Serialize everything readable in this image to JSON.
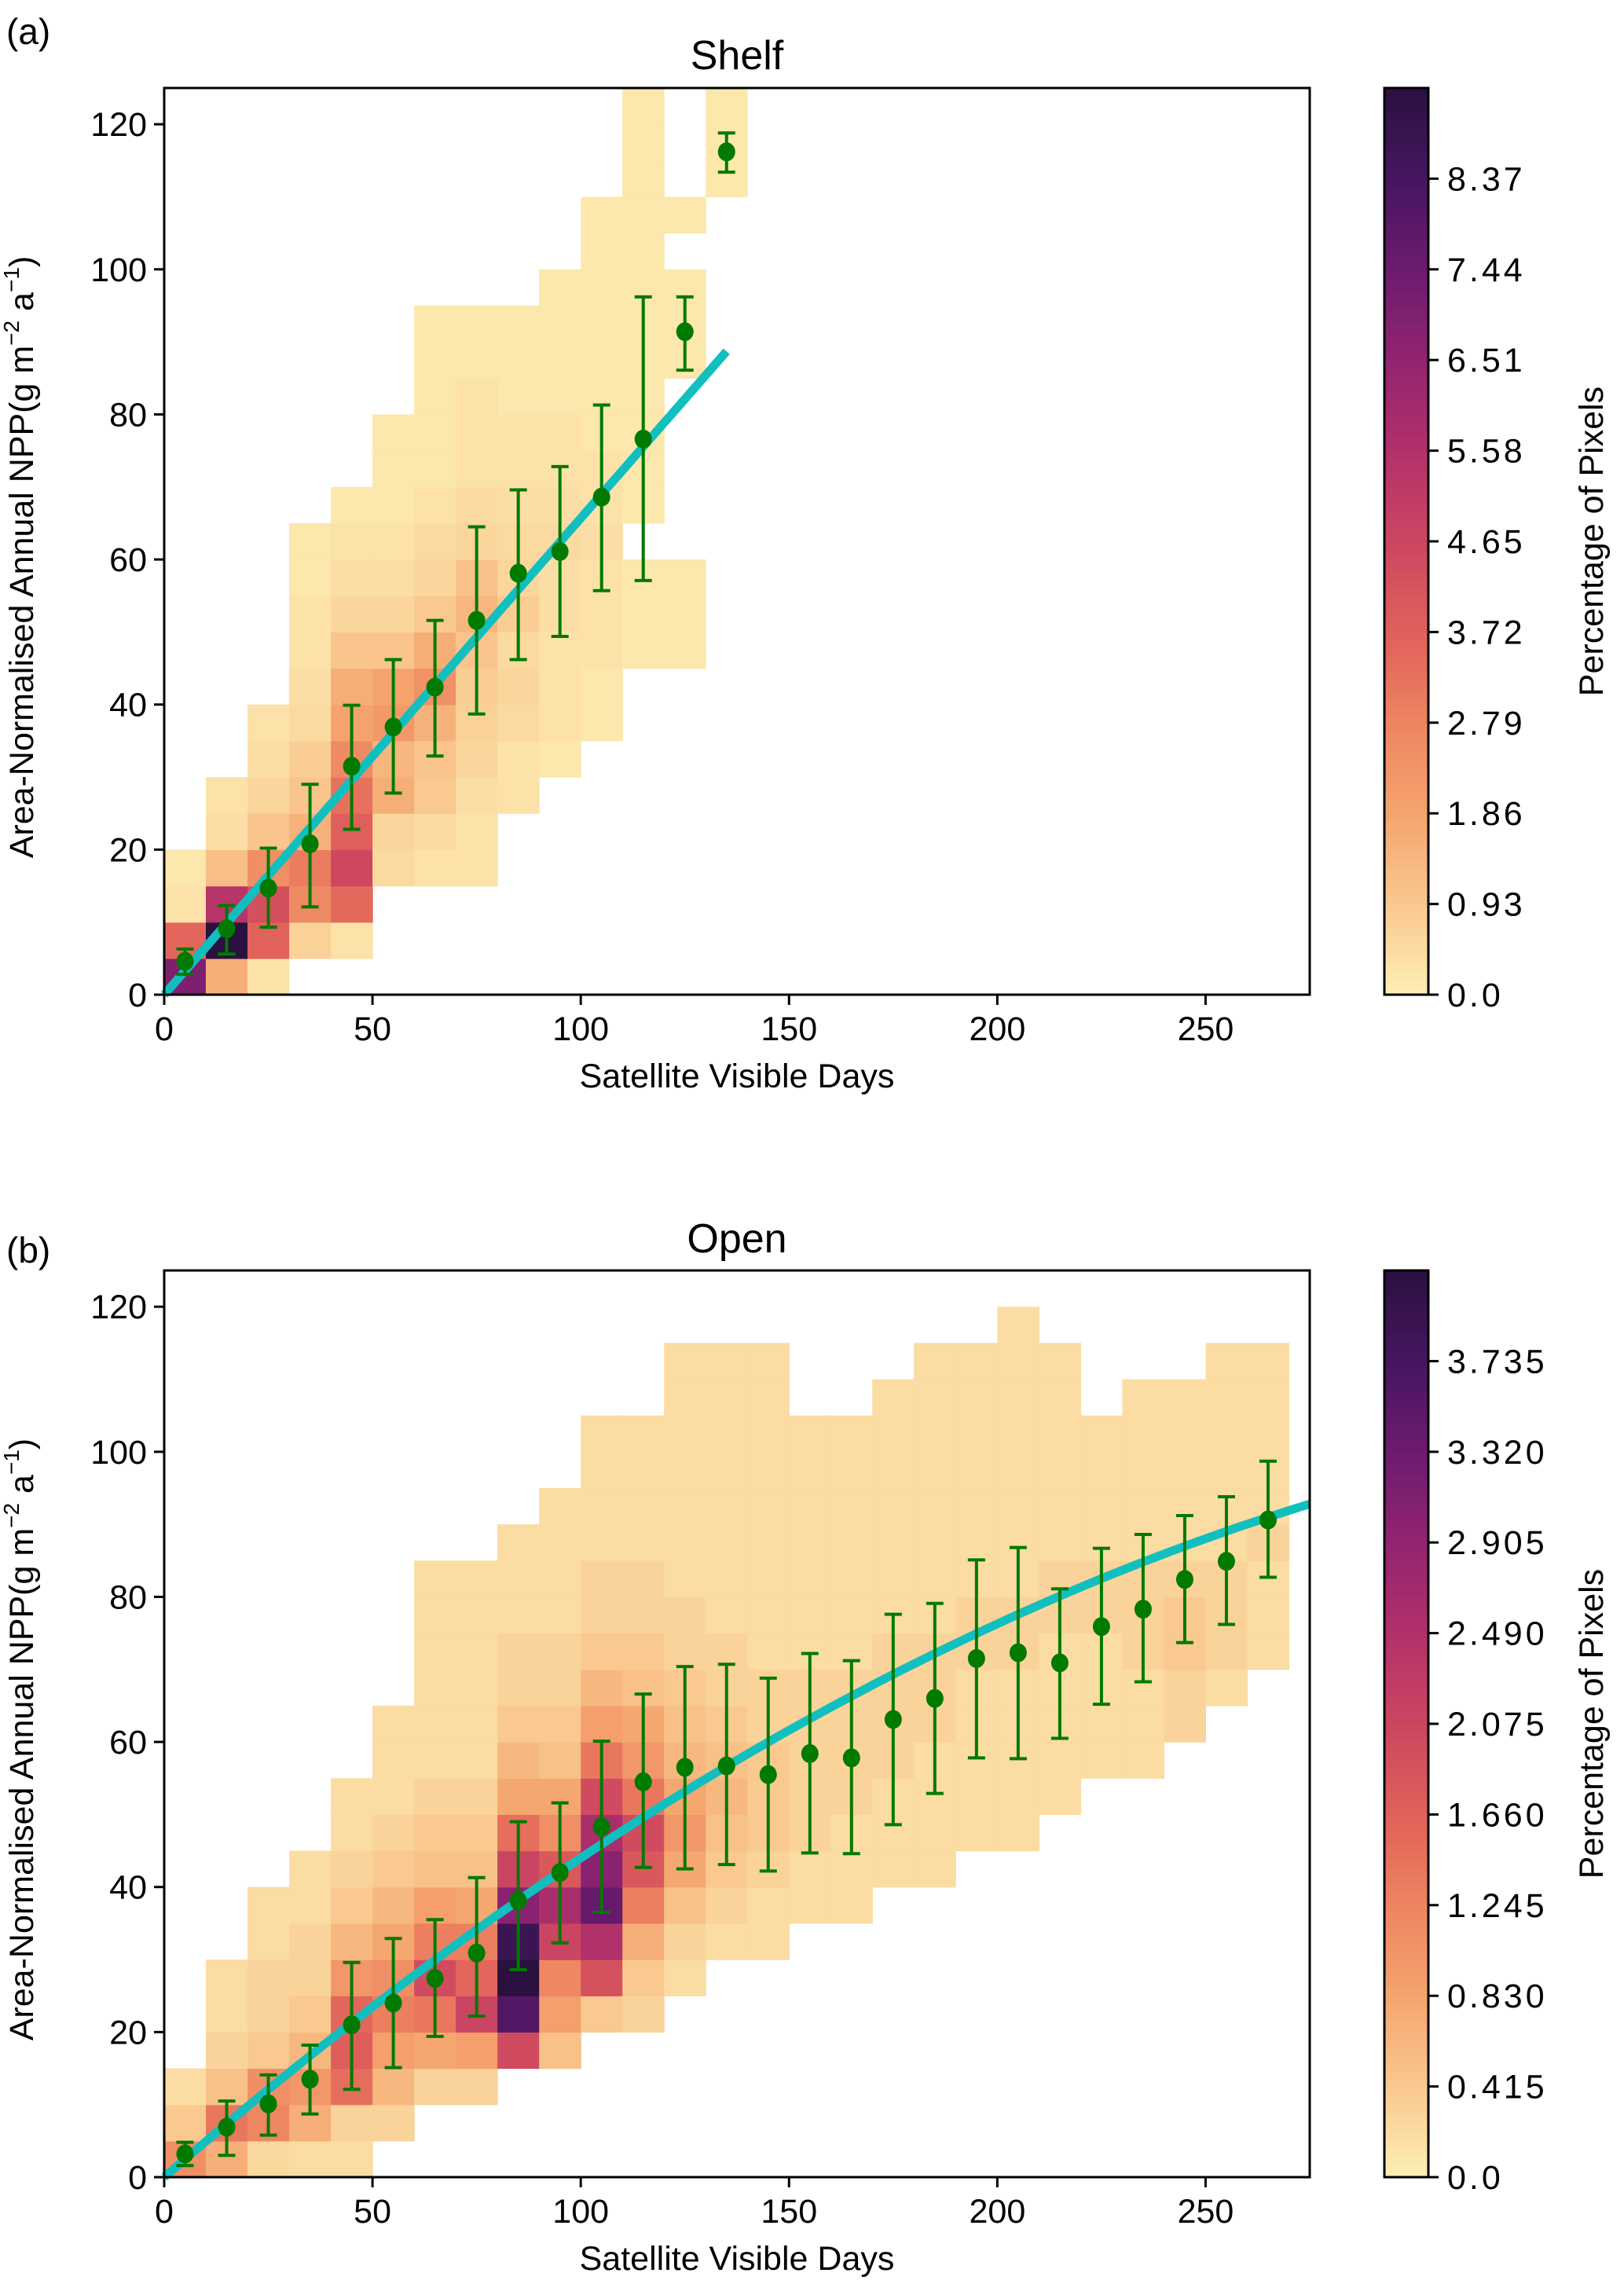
{
  "figure": {
    "panels": [
      "a",
      "b"
    ]
  },
  "colormap": {
    "name": "magma_r",
    "stops": [
      "#fdefb5",
      "#f9c88f",
      "#f5a46e",
      "#ee8461",
      "#e0615a",
      "#cc4661",
      "#b2316a",
      "#912471",
      "#6d1b6f",
      "#461660",
      "#2a1140"
    ]
  },
  "style": {
    "point_color": "#007a00",
    "fit_color": "#12bfbf",
    "axis_color": "#000000"
  },
  "chart_data": [
    {
      "id": "a",
      "type": "heatmap",
      "panel_label": "(a)",
      "title": "Shelf",
      "xlabel": "Satellite Visible Days",
      "ylabel": "Area-Normalised Annual NPP(g m-2 a-1)",
      "ylabel_parts": {
        "main": "Area-Normalised Annual NPP(g m",
        "sup1": "−2",
        "mid": " a",
        "sup2": "−1",
        "end": ")"
      },
      "xlim": [
        0,
        275
      ],
      "ylim": [
        0,
        125
      ],
      "xticks": [
        0,
        50,
        100,
        150,
        200,
        250
      ],
      "yticks": [
        0,
        20,
        40,
        60,
        80,
        100,
        120
      ],
      "bin_width_x": 10,
      "bin_height_y": 5,
      "colorbar": {
        "label": "Percentage of Pixels",
        "range": [
          0,
          9.3
        ],
        "ticks": [
          "0.0",
          "0.93",
          "1.86",
          "2.79",
          "3.72",
          "4.65",
          "5.58",
          "6.51",
          "7.44",
          "8.37"
        ],
        "tick_values": [
          0,
          0.93,
          1.86,
          2.79,
          3.72,
          4.65,
          5.58,
          6.51,
          7.44,
          8.37
        ]
      },
      "heatmap_columns": [
        {
          "x": 0,
          "y0": 0,
          "values": [
            7.0,
            3.6,
            0.3,
            0.2
          ]
        },
        {
          "x": 10,
          "y0": 0,
          "values": [
            1.6,
            9.3,
            5.4,
            1.2,
            0.4,
            0.3
          ]
        },
        {
          "x": 20,
          "y0": 0,
          "values": [
            0.3,
            3.7,
            4.3,
            2.5,
            1.0,
            0.6,
            0.4,
            0.3
          ]
        },
        {
          "x": 30,
          "y0": 5,
          "values": [
            0.7,
            2.6,
            3.0,
            1.5,
            1.0,
            0.8,
            0.5,
            0.4,
            0.3,
            0.3,
            0.2,
            0.2
          ]
        },
        {
          "x": 40,
          "y0": 5,
          "values": [
            0.3,
            3.5,
            4.6,
            3.8,
            3.3,
            2.6,
            1.9,
            1.6,
            1.0,
            0.6,
            0.4,
            0.3,
            0.2
          ]
        },
        {
          "x": 50,
          "y0": 15,
          "values": [
            0.5,
            0.6,
            1.6,
            1.4,
            2.2,
            1.9,
            1.0,
            0.6,
            0.4,
            0.3,
            0.2,
            0.2,
            0.2
          ]
        },
        {
          "x": 60,
          "y0": 15,
          "values": [
            0.3,
            0.5,
            0.9,
            1.0,
            1.5,
            2.4,
            1.6,
            0.9,
            0.6,
            0.5,
            0.3,
            0.2,
            0.2,
            0.2,
            0.2,
            0.2
          ]
        },
        {
          "x": 70,
          "y0": 15,
          "values": [
            0.3,
            0.3,
            0.4,
            0.6,
            0.7,
            0.8,
            1.0,
            1.4,
            1.1,
            0.6,
            0.5,
            0.3,
            0.3,
            0.3,
            0.2,
            0.2
          ]
        },
        {
          "x": 80,
          "y0": 25,
          "values": [
            0.3,
            0.3,
            0.5,
            0.6,
            0.5,
            0.8,
            0.6,
            0.5,
            0.4,
            0.3,
            0.3,
            0.2,
            0.2,
            0.2
          ]
        },
        {
          "x": 90,
          "y0": 30,
          "values": [
            0.2,
            0.3,
            0.3,
            0.3,
            0.4,
            0.4,
            0.5,
            0.4,
            0.3,
            0.3,
            0.2,
            0.2,
            0.2,
            0.2
          ]
        },
        {
          "x": 100,
          "y0": 35,
          "values": [
            0.2,
            0.2,
            0.3,
            0.3,
            0.3,
            0.4,
            0.3,
            0.3,
            0.2,
            0.2,
            0.2,
            0.2,
            0.2,
            0.2,
            0.2
          ]
        },
        {
          "x": 110,
          "y0": 45,
          "values": [
            0.2,
            0.2,
            0.2,
            null,
            0.2,
            0.2,
            0.2,
            0.2,
            0.2,
            0.2,
            0.2,
            0.2,
            0.2,
            0.2,
            0.2,
            0.2
          ]
        },
        {
          "x": 120,
          "y0": 45,
          "values": [
            0.2,
            0.2,
            0.2,
            null,
            null,
            null,
            null,
            null,
            0.2,
            0.2,
            0.2,
            null,
            0.2
          ]
        },
        {
          "x": 130,
          "y0": 110,
          "values": [
            0.2,
            0.2,
            0.2
          ]
        }
      ],
      "mean_points": {
        "x": [
          5,
          15,
          25,
          35,
          45,
          55,
          65,
          75,
          85,
          95,
          105,
          115,
          125,
          135
        ],
        "y": [
          4.6,
          9.1,
          14.7,
          20.8,
          31.5,
          36.9,
          42.4,
          51.6,
          58.1,
          61.1,
          68.6,
          76.6,
          91.4,
          116.2
        ],
        "upper": [
          6.3,
          12.3,
          20.2,
          29.0,
          39.9,
          46.2,
          51.6,
          64.5,
          69.6,
          72.8,
          81.3,
          96.2,
          96.2,
          118.8
        ],
        "lower": [
          2.8,
          5.6,
          9.3,
          12.1,
          22.8,
          27.8,
          32.9,
          38.7,
          46.2,
          49.4,
          55.7,
          57.1,
          86.1,
          113.4
        ]
      },
      "fit": {
        "form": "y = a*x + b*x^2",
        "a": 0.657,
        "b": 0.0,
        "x_range": [
          0,
          135
        ]
      }
    },
    {
      "id": "b",
      "type": "heatmap",
      "panel_label": "(b)",
      "title": "Open",
      "xlabel": "Satellite Visible Days",
      "ylabel": "Area-Normalised Annual NPP(g m-2 a-1)",
      "ylabel_parts": {
        "main": "Area-Normalised Annual NPP(g m",
        "sup1": "−2",
        "mid": " a",
        "sup2": "−1",
        "end": ")"
      },
      "xlim": [
        0,
        275
      ],
      "ylim": [
        0,
        125
      ],
      "xticks": [
        0,
        50,
        100,
        150,
        200,
        250
      ],
      "yticks": [
        0,
        20,
        40,
        60,
        80,
        100,
        120
      ],
      "bin_width_x": 10,
      "bin_height_y": 5,
      "colorbar": {
        "label": "Percentage of Pixels",
        "range": [
          0,
          4.15
        ],
        "ticks": [
          "0.0",
          "0.415",
          "0.830",
          "1.245",
          "1.660",
          "2.075",
          "2.490",
          "2.905",
          "3.320",
          "3.735"
        ],
        "tick_values": [
          0,
          0.415,
          0.83,
          1.245,
          1.66,
          2.075,
          2.49,
          2.905,
          3.32,
          3.735
        ]
      },
      "heatmap_columns": [
        {
          "x": 0,
          "y0": 0,
          "values": [
            1.1,
            0.4,
            0.2
          ]
        },
        {
          "x": 10,
          "y0": 0,
          "values": [
            0.7,
            1.4,
            0.5,
            0.3,
            0.2,
            0.2
          ]
        },
        {
          "x": 20,
          "y0": 0,
          "values": [
            0.25,
            1.2,
            1.1,
            0.4,
            0.3,
            0.3,
            0.2,
            0.2
          ]
        },
        {
          "x": 30,
          "y0": 0,
          "values": [
            0.2,
            0.7,
            1.0,
            0.6,
            0.4,
            0.3,
            0.3,
            0.2,
            0.2
          ]
        },
        {
          "x": 40,
          "y0": 0,
          "values": [
            0.2,
            0.3,
            1.5,
            1.7,
            1.6,
            1.0,
            0.6,
            0.4,
            0.3,
            0.2,
            0.2
          ]
        },
        {
          "x": 50,
          "y0": 5,
          "values": [
            0.3,
            0.6,
            0.9,
            1.3,
            1.1,
            0.8,
            0.6,
            0.4,
            0.3,
            0.2,
            0.2,
            0.2
          ]
        },
        {
          "x": 60,
          "y0": 10,
          "values": [
            0.3,
            0.8,
            1.4,
            2.0,
            1.3,
            0.9,
            0.5,
            0.4,
            0.3,
            0.2,
            0.2,
            0.2,
            0.2,
            0.2,
            0.2
          ]
        },
        {
          "x": 70,
          "y0": 10,
          "values": [
            0.3,
            0.9,
            2.1,
            1.6,
            1.3,
            0.8,
            0.5,
            0.4,
            0.3,
            0.2,
            0.2,
            0.2,
            0.2,
            0.2,
            0.2
          ]
        },
        {
          "x": 80,
          "y0": 15,
          "values": [
            2.0,
            3.6,
            4.15,
            3.9,
            3.0,
            2.1,
            1.5,
            0.8,
            0.6,
            0.4,
            0.3,
            0.3,
            0.2,
            0.2,
            0.2
          ]
        },
        {
          "x": 90,
          "y0": 15,
          "values": [
            0.5,
            0.9,
            1.2,
            2.1,
            2.6,
            1.8,
            1.1,
            0.8,
            0.5,
            0.4,
            0.3,
            0.3,
            0.2,
            0.2,
            0.2,
            0.2
          ]
        },
        {
          "x": 100,
          "y0": 20,
          "values": [
            0.4,
            1.9,
            2.5,
            3.4,
            3.0,
            2.6,
            2.0,
            1.4,
            0.9,
            0.6,
            0.4,
            0.3,
            0.3,
            0.2,
            0.2,
            0.2,
            0.2
          ]
        },
        {
          "x": 110,
          "y0": 20,
          "values": [
            0.3,
            0.4,
            0.7,
            1.3,
            1.8,
            2.0,
            1.4,
            1.0,
            0.8,
            0.5,
            0.4,
            0.3,
            0.3,
            0.2,
            0.2,
            0.2,
            0.2
          ]
        },
        {
          "x": 120,
          "y0": 25,
          "values": [
            0.2,
            0.3,
            0.5,
            0.8,
            1.0,
            0.8,
            0.6,
            0.5,
            0.4,
            0.3,
            0.3,
            0.2,
            0.2,
            0.2,
            0.2,
            0.2,
            0.2,
            0.2
          ]
        },
        {
          "x": 130,
          "y0": 30,
          "values": [
            0.2,
            0.3,
            0.4,
            0.5,
            0.6,
            0.5,
            0.4,
            0.3,
            0.3,
            0.2,
            0.2,
            0.2,
            0.2,
            0.2,
            0.2,
            0.2,
            0.2
          ]
        },
        {
          "x": 140,
          "y0": 30,
          "values": [
            0.2,
            0.2,
            0.3,
            0.4,
            0.4,
            0.4,
            0.3,
            0.3,
            0.2,
            0.2,
            0.2,
            0.2,
            0.2,
            0.2,
            0.2,
            0.2,
            0.2
          ]
        },
        {
          "x": 150,
          "y0": 35,
          "values": [
            0.2,
            0.2,
            0.3,
            0.3,
            0.3,
            0.3,
            0.3,
            0.2,
            0.2,
            0.2,
            0.2,
            0.2,
            0.2,
            0.2
          ]
        },
        {
          "x": 160,
          "y0": 35,
          "values": [
            0.2,
            0.2,
            0.2,
            0.3,
            0.3,
            0.3,
            0.3,
            0.2,
            0.2,
            0.2,
            0.2,
            0.2,
            0.2,
            0.2
          ]
        },
        {
          "x": 170,
          "y0": 40,
          "values": [
            0.2,
            0.2,
            0.2,
            0.3,
            0.3,
            0.3,
            0.3,
            0.2,
            0.2,
            0.2,
            0.2,
            0.2,
            0.2,
            0.2
          ]
        },
        {
          "x": 180,
          "y0": 40,
          "values": [
            0.2,
            0.2,
            0.2,
            0.2,
            0.3,
            0.3,
            0.3,
            0.2,
            0.2,
            0.2,
            0.2,
            0.2,
            0.2,
            0.2,
            0.2
          ]
        },
        {
          "x": 190,
          "y0": 45,
          "values": [
            0.2,
            0.2,
            0.2,
            0.2,
            0.2,
            0.3,
            0.3,
            0.2,
            0.2,
            0.2,
            0.2,
            0.2,
            0.2,
            0.2
          ]
        },
        {
          "x": 200,
          "y0": 45,
          "values": [
            0.2,
            0.2,
            0.2,
            0.2,
            0.2,
            0.3,
            0.3,
            0.2,
            0.2,
            0.2,
            0.2,
            0.2,
            0.2,
            0.2,
            0.2
          ]
        },
        {
          "x": 210,
          "y0": 50,
          "values": [
            0.2,
            0.2,
            0.2,
            0.2,
            0.2,
            0.3,
            0.3,
            0.2,
            0.2,
            0.2,
            0.2,
            0.2,
            0.2
          ]
        },
        {
          "x": 220,
          "y0": 55,
          "values": [
            0.2,
            0.2,
            0.2,
            0.2,
            0.3,
            0.3,
            0.2,
            0.2,
            0.2,
            0.2
          ]
        },
        {
          "x": 230,
          "y0": 55,
          "values": [
            0.2,
            0.2,
            0.2,
            0.3,
            0.3,
            0.3,
            0.2,
            0.2,
            0.2,
            0.2,
            0.2
          ]
        },
        {
          "x": 240,
          "y0": 60,
          "values": [
            0.3,
            0.3,
            0.4,
            0.4,
            0.3,
            0.2,
            0.2,
            0.2,
            0.2,
            0.2
          ]
        },
        {
          "x": 250,
          "y0": 65,
          "values": [
            0.2,
            0.3,
            0.3,
            0.3,
            0.2,
            0.2,
            0.2,
            0.2,
            0.2,
            0.2
          ]
        },
        {
          "x": 260,
          "y0": 70,
          "values": [
            0.2,
            0.2,
            0.2,
            0.3,
            0.2,
            0.2,
            0.2,
            0.2,
            0.2
          ]
        }
      ],
      "mean_points": {
        "x": [
          5,
          15,
          25,
          35,
          45,
          55,
          65,
          75,
          85,
          95,
          105,
          115,
          125,
          135,
          145,
          155,
          165,
          175,
          185,
          195,
          205,
          215,
          225,
          235,
          245,
          255,
          265
        ],
        "y": [
          3.2,
          6.9,
          10.1,
          13.5,
          21.0,
          24.0,
          27.4,
          30.9,
          38.1,
          42.0,
          48.3,
          54.5,
          56.5,
          56.7,
          55.5,
          58.4,
          57.8,
          63.1,
          66.0,
          71.5,
          72.3,
          70.9,
          75.9,
          78.3,
          82.4,
          84.9,
          90.6
        ],
        "upper": [
          4.8,
          10.5,
          14.1,
          18.2,
          29.6,
          32.9,
          35.5,
          41.3,
          49.0,
          51.6,
          60.1,
          66.6,
          70.4,
          70.7,
          68.8,
          72.2,
          71.2,
          77.6,
          79.1,
          85.1,
          86.8,
          81.1,
          86.7,
          88.6,
          91.2,
          93.8,
          98.7
        ],
        "lower": [
          1.6,
          3.0,
          5.8,
          8.7,
          12.1,
          15.1,
          19.4,
          22.2,
          28.6,
          32.3,
          36.5,
          42.7,
          42.5,
          43.1,
          42.2,
          44.7,
          44.6,
          48.6,
          52.9,
          57.8,
          57.7,
          60.5,
          65.2,
          68.3,
          73.7,
          76.2,
          82.7
        ]
      },
      "fit": {
        "form": "y = a*x + b*x^2",
        "a": 0.4986,
        "b": -0.000586,
        "x_range": [
          0,
          275
        ]
      }
    }
  ]
}
